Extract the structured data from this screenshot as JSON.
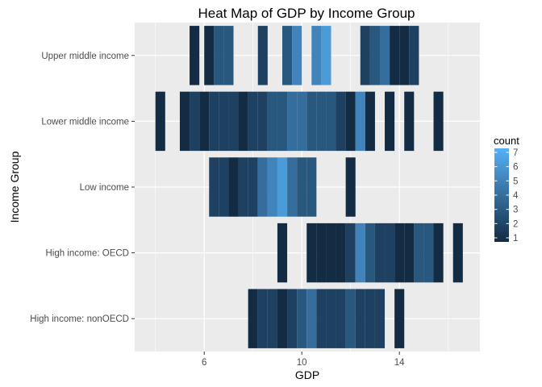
{
  "chart_data": {
    "type": "heatmap",
    "title": "Heat Map of GDP by Income Group",
    "xlabel": "GDP",
    "ylabel": "Income Group",
    "xlim": [
      3.15,
      17.3
    ],
    "x_ticks": [
      6,
      10,
      14
    ],
    "x_tick_labels": [
      "6",
      "10",
      "14"
    ],
    "categories": [
      "High income: nonOECD",
      "High income: OECD",
      "Low income",
      "Lower middle income",
      "Upper middle income"
    ],
    "bin_width": 0.4,
    "grid": true,
    "legend": {
      "title": "count",
      "placement": "right",
      "min": 1,
      "max": 7,
      "breaks": [
        1,
        2,
        3,
        4,
        5,
        6,
        7
      ],
      "low_color": "#132b43",
      "high_color": "#56b1f7"
    },
    "colors": {
      "panel": "#ebebeb",
      "gridline": "#ffffff"
    },
    "series": [
      {
        "category": "Upper middle income",
        "x": [
          5.6,
          6.2,
          6.6,
          7.0,
          8.4,
          9.4,
          9.8,
          10.6,
          11.0,
          12.6,
          13.0,
          13.4,
          13.8,
          14.2,
          14.6
        ],
        "values": [
          1,
          1,
          3,
          3,
          2,
          3,
          5,
          5,
          6,
          2,
          3,
          4,
          1,
          1,
          2
        ]
      },
      {
        "category": "Lower middle income",
        "x": [
          4.2,
          5.2,
          5.6,
          6.0,
          6.4,
          6.8,
          7.2,
          7.6,
          8.0,
          8.4,
          8.8,
          9.2,
          9.6,
          10.0,
          10.4,
          10.8,
          11.2,
          11.6,
          12.0,
          12.4,
          12.8,
          13.6,
          14.4,
          15.6
        ],
        "values": [
          1,
          1,
          2,
          1,
          2,
          2,
          2,
          1,
          2,
          2,
          3,
          3,
          4,
          4,
          3,
          3,
          3,
          2,
          1,
          5,
          1,
          1,
          1,
          1
        ]
      },
      {
        "category": "Low income",
        "x": [
          6.4,
          6.8,
          7.2,
          7.6,
          8.0,
          8.4,
          8.8,
          9.2,
          9.6,
          10.0,
          10.4,
          12.0
        ],
        "values": [
          2,
          2,
          1,
          2,
          2,
          4,
          5,
          6,
          4,
          3,
          3,
          1
        ]
      },
      {
        "category": "High income: OECD",
        "x": [
          9.2,
          10.4,
          10.8,
          11.2,
          11.6,
          12.0,
          12.4,
          12.8,
          13.2,
          13.6,
          14.0,
          14.4,
          14.8,
          15.2,
          15.6,
          16.4
        ],
        "values": [
          1,
          1,
          1,
          1,
          1,
          2,
          5,
          3,
          2,
          2,
          1,
          1,
          3,
          3,
          1,
          1
        ]
      },
      {
        "category": "High income: nonOECD",
        "x": [
          8.0,
          8.4,
          8.8,
          9.2,
          9.6,
          10.0,
          10.4,
          10.8,
          11.2,
          11.6,
          12.0,
          12.4,
          12.8,
          13.2,
          14.0
        ],
        "values": [
          1,
          2,
          2,
          1,
          2,
          3,
          4,
          2,
          2,
          2,
          3,
          2,
          2,
          2,
          1
        ]
      }
    ]
  }
}
